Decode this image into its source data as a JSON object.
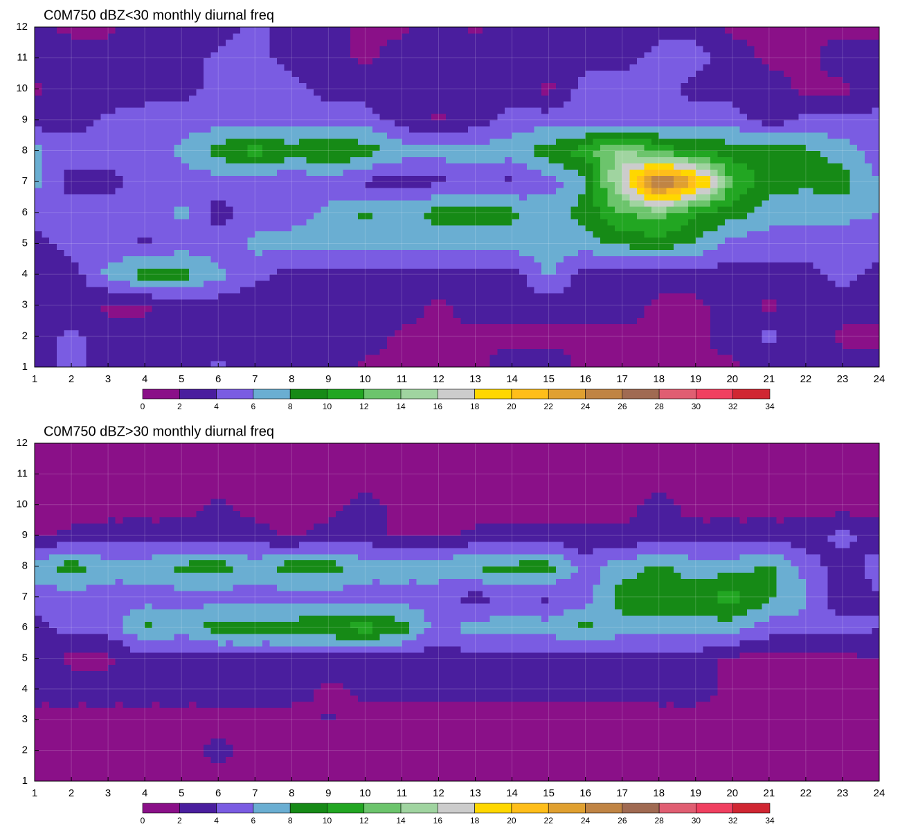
{
  "chart_data": [
    {
      "type": "contour",
      "title": "C0M750 dBZ<30 monthly diurnal freq",
      "x": [
        1,
        2,
        3,
        4,
        5,
        6,
        7,
        8,
        9,
        10,
        11,
        12,
        13,
        14,
        15,
        16,
        17,
        18,
        19,
        20,
        21,
        22,
        23,
        24
      ],
      "y": [
        1,
        2,
        3,
        4,
        5,
        6,
        7,
        8,
        9,
        10,
        11,
        12
      ],
      "z": [
        [
          3,
          5,
          3,
          3,
          3,
          4.5,
          3,
          3,
          3,
          1.5,
          1.5,
          1.5,
          1.5,
          3,
          3,
          1.5,
          1.5,
          1,
          1.5,
          1.5,
          3,
          3,
          3,
          3
        ],
        [
          3,
          4.5,
          3,
          3,
          3,
          3,
          3,
          3,
          3,
          3,
          1.5,
          1.5,
          1.5,
          1.5,
          1.5,
          1.5,
          1.5,
          1.5,
          1.5,
          3,
          4.5,
          3,
          1.5,
          1.5
        ],
        [
          3,
          3,
          1.5,
          1.5,
          3,
          3,
          2,
          3,
          3,
          3,
          3,
          1.5,
          3,
          3,
          3,
          3,
          3,
          1.5,
          1.5,
          3,
          1.5,
          3,
          3,
          3
        ],
        [
          3,
          3,
          6.5,
          9,
          9,
          6.5,
          5,
          3,
          3,
          3,
          3,
          3,
          3,
          3,
          6.5,
          3,
          3,
          3,
          3,
          3,
          3,
          3,
          5,
          3
        ],
        [
          3,
          5,
          5,
          3.5,
          5,
          5,
          6.5,
          7,
          7,
          7,
          7,
          7,
          7,
          7,
          7,
          7,
          8.5,
          9,
          8,
          5,
          5,
          5,
          5,
          5
        ],
        [
          5,
          5,
          5,
          5,
          6.5,
          3,
          5,
          5,
          6.5,
          8.5,
          7,
          9,
          8.5,
          8.5,
          7,
          9,
          12,
          13,
          10,
          9,
          7,
          6.5,
          6.5,
          6
        ],
        [
          6.5,
          3,
          3,
          5,
          5,
          5,
          5,
          4,
          5,
          3.5,
          3.5,
          3.5,
          5,
          3.5,
          5,
          7.5,
          17,
          27,
          22,
          12,
          9,
          8.5,
          9,
          6
        ],
        [
          6.5,
          5,
          5,
          5,
          6.5,
          9,
          11,
          9,
          10.5,
          9,
          7,
          7,
          7,
          7,
          9,
          11,
          15,
          11,
          10,
          9,
          9,
          8.5,
          7,
          5
        ],
        [
          3,
          3,
          4.5,
          5,
          5,
          5,
          5,
          5,
          5,
          5,
          3,
          1.5,
          3,
          5,
          5,
          5,
          5,
          5,
          5,
          5,
          3,
          4.5,
          4.5,
          4.5
        ],
        [
          1.5,
          3,
          2.5,
          3,
          3,
          5,
          5,
          5,
          3,
          3,
          3,
          3,
          3,
          3,
          1.5,
          5,
          5,
          5,
          3,
          3,
          3,
          1.5,
          1.5,
          3
        ],
        [
          3,
          3,
          3,
          3,
          3,
          4.5,
          5,
          3,
          3,
          1.5,
          3,
          3,
          3,
          3,
          3,
          3,
          3,
          5,
          5,
          3,
          1.5,
          1.5,
          3,
          3
        ],
        [
          2.5,
          1.5,
          1.5,
          3,
          3,
          3,
          4.5,
          3,
          3,
          1.5,
          1.5,
          3,
          1.5,
          3,
          3,
          3,
          3,
          3,
          3,
          1.5,
          1.5,
          1.5,
          1.5,
          1.5
        ]
      ],
      "xlim": [
        1,
        24
      ],
      "xticks": [
        1,
        2,
        3,
        4,
        5,
        6,
        7,
        8,
        9,
        10,
        11,
        12,
        13,
        14,
        15,
        16,
        17,
        18,
        19,
        20,
        21,
        22,
        23,
        24
      ],
      "ylim": [
        1,
        12
      ],
      "yticks": [
        1,
        2,
        3,
        4,
        5,
        6,
        7,
        8,
        9,
        10,
        11,
        12
      ],
      "grid": true,
      "levels": [
        0,
        2,
        4,
        6,
        8,
        10,
        12,
        14,
        16,
        18,
        20,
        22,
        24,
        26,
        28,
        30,
        32,
        34
      ],
      "colors": [
        "#8a1088",
        "#4a1e9e",
        "#7a5ce2",
        "#6aaed2",
        "#168a16",
        "#22a622",
        "#6cc46c",
        "#a0d4a0",
        "#cccccc",
        "#ffd700",
        "#ffbe1a",
        "#e0a030",
        "#c08444",
        "#a06a52",
        "#e05e72",
        "#f04060",
        "#d02632"
      ]
    },
    {
      "type": "contour",
      "title": "C0M750 dBZ>30 monthly diurnal freq",
      "x": [
        1,
        2,
        3,
        4,
        5,
        6,
        7,
        8,
        9,
        10,
        11,
        12,
        13,
        14,
        15,
        16,
        17,
        18,
        19,
        20,
        21,
        22,
        23,
        24
      ],
      "y": [
        1,
        2,
        3,
        4,
        5,
        6,
        7,
        8,
        9,
        10,
        11,
        12
      ],
      "z": [
        [
          1,
          1,
          1,
          1,
          1,
          1,
          1,
          1,
          1,
          1,
          1,
          1,
          1,
          1,
          1,
          1,
          1,
          1,
          1,
          1,
          1,
          1,
          1,
          1
        ],
        [
          1,
          1,
          1,
          1,
          1,
          3,
          1,
          1,
          1,
          1,
          1,
          1,
          1,
          1,
          1,
          1,
          1,
          1,
          1,
          1,
          1,
          1,
          1,
          1
        ],
        [
          1,
          1,
          1,
          1,
          1,
          1,
          1,
          1,
          2.2,
          1,
          1,
          1,
          1,
          1,
          1,
          1,
          1,
          1,
          1,
          1,
          1,
          1,
          1,
          1
        ],
        [
          3,
          3,
          3,
          3,
          3,
          3,
          3.5,
          3,
          1.5,
          2.5,
          2.5,
          2.5,
          2.5,
          2.5,
          2.5,
          3,
          2.5,
          3,
          3,
          1.5,
          1.5,
          1.5,
          1.5,
          1.5
        ],
        [
          3,
          1.5,
          1.5,
          3,
          3,
          3,
          3,
          3,
          3,
          3,
          3,
          3,
          3,
          3,
          3,
          3,
          3,
          3,
          3,
          1.5,
          1.5,
          1.5,
          1.5,
          2
        ],
        [
          3,
          5,
          5,
          8.5,
          7,
          9,
          9,
          9,
          10,
          11,
          9,
          5,
          7,
          7,
          7,
          8.5,
          7,
          7,
          7,
          7,
          5,
          5,
          5,
          4
        ],
        [
          5,
          5,
          5,
          5,
          5,
          5,
          5,
          5,
          5,
          5,
          5,
          5,
          3,
          5,
          3.5,
          5,
          9,
          9,
          9,
          11,
          8.5,
          6.5,
          2,
          4
        ],
        [
          7,
          9,
          7,
          7,
          8.5,
          9,
          7,
          9,
          9,
          7,
          7,
          7,
          8.5,
          8.5,
          9,
          5,
          7,
          8.5,
          7,
          7,
          8.5,
          5,
          3,
          5
        ],
        [
          1.5,
          2.5,
          3,
          3,
          3,
          3,
          3,
          1.5,
          3,
          3,
          1.5,
          1.5,
          2.5,
          2.5,
          2.5,
          2.5,
          2.5,
          2.5,
          3,
          3,
          3,
          3,
          4.5,
          3
        ],
        [
          1,
          1,
          1,
          1,
          1,
          2.5,
          1,
          1,
          1,
          3,
          1,
          1,
          1,
          1,
          1,
          1,
          1,
          3,
          1,
          1,
          1,
          1,
          1,
          1
        ],
        [
          1,
          1,
          1,
          1,
          1,
          1,
          1,
          1,
          1,
          1,
          1,
          1,
          1,
          1,
          1,
          1,
          1,
          1,
          1,
          1,
          1,
          1,
          1,
          1
        ],
        [
          1,
          1,
          1,
          1,
          1,
          1,
          1,
          1,
          1,
          1,
          1,
          1,
          1,
          1,
          1,
          1,
          1,
          1,
          1,
          1,
          1,
          1,
          1,
          1
        ]
      ],
      "xlim": [
        1,
        24
      ],
      "xticks": [
        1,
        2,
        3,
        4,
        5,
        6,
        7,
        8,
        9,
        10,
        11,
        12,
        13,
        14,
        15,
        16,
        17,
        18,
        19,
        20,
        21,
        22,
        23,
        24
      ],
      "ylim": [
        1,
        12
      ],
      "yticks": [
        1,
        2,
        3,
        4,
        5,
        6,
        7,
        8,
        9,
        10,
        11,
        12
      ],
      "grid": true,
      "levels": [
        0,
        2,
        4,
        6,
        8,
        10,
        12,
        14,
        16,
        18,
        20,
        22,
        24,
        26,
        28,
        30,
        32,
        34
      ],
      "colors": [
        "#8a1088",
        "#4a1e9e",
        "#7a5ce2",
        "#6aaed2",
        "#168a16",
        "#22a622",
        "#6cc46c",
        "#a0d4a0",
        "#cccccc",
        "#ffd700",
        "#ffbe1a",
        "#e0a030",
        "#c08444",
        "#a06a52",
        "#e05e72",
        "#f04060",
        "#d02632"
      ]
    }
  ]
}
